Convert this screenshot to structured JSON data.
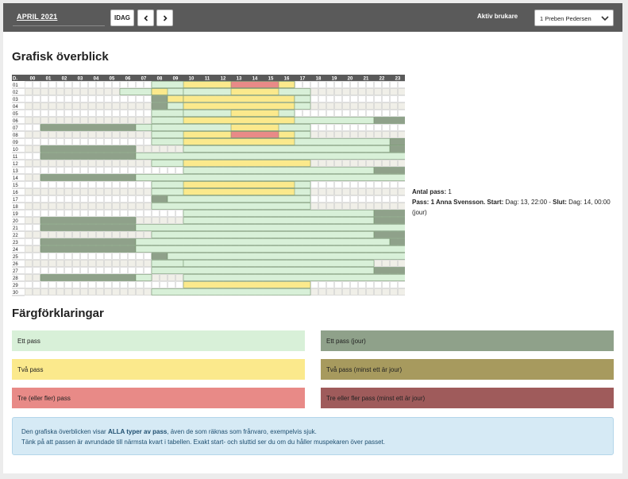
{
  "topbar": {
    "month_label": "APRIL 2021",
    "today_label": "IDAG",
    "prev_icon": "chevron-left-icon",
    "next_icon": "chevron-right-icon",
    "active_user_label": "Aktiv brukare",
    "selected_user": "1 Preben Pedersen",
    "dropdown_icon": "chevron-down-icon"
  },
  "overview": {
    "title": "Grafisk överblick",
    "corner_label": "D.",
    "hours": [
      "00",
      "01",
      "02",
      "03",
      "04",
      "05",
      "06",
      "07",
      "08",
      "09",
      "10",
      "11",
      "12",
      "13",
      "14",
      "15",
      "16",
      "17",
      "18",
      "19",
      "20",
      "21",
      "22",
      "23"
    ],
    "days": [
      "01",
      "02",
      "03",
      "04",
      "05",
      "06",
      "07",
      "08",
      "09",
      "10",
      "11",
      "12",
      "13",
      "14",
      "15",
      "16",
      "17",
      "18",
      "19",
      "20",
      "21",
      "22",
      "23",
      "24",
      "25",
      "26",
      "27",
      "28",
      "29",
      "30"
    ],
    "colors": {
      "one": "#d8f0d8",
      "two": "#fbe98c",
      "three": "#e88a87",
      "jour_one": "#8fa18a",
      "jour_two": "#a79a5e",
      "jour_three": "#9f5b5b",
      "empty": "#ffffff",
      "empty_alt": "#f0efe8",
      "border": "#cfcfcf",
      "header_bg": "#5a5a5a"
    },
    "rows": [
      [
        {
          "s": 8,
          "e": 17,
          "c": "one"
        },
        {
          "s": 10,
          "e": 17,
          "c": "two"
        },
        {
          "s": 13,
          "e": 16,
          "c": "three"
        }
      ],
      [
        {
          "s": 6,
          "e": 8,
          "c": "one"
        },
        {
          "s": 8,
          "e": 10,
          "c": "one"
        },
        {
          "s": 10,
          "e": 18,
          "c": "one"
        },
        {
          "s": 8,
          "e": 9,
          "c": "two"
        },
        {
          "s": 13,
          "e": 16,
          "c": "two"
        }
      ],
      [
        {
          "s": 8,
          "e": 9,
          "c": "jour_one"
        },
        {
          "s": 9,
          "e": 10,
          "c": "two"
        },
        {
          "s": 10,
          "e": 17,
          "c": "two"
        },
        {
          "s": 17,
          "e": 18,
          "c": "one"
        }
      ],
      [
        {
          "s": 8,
          "e": 9,
          "c": "jour_one"
        },
        {
          "s": 9,
          "e": 10,
          "c": "one"
        },
        {
          "s": 10,
          "e": 17,
          "c": "two"
        },
        {
          "s": 17,
          "e": 18,
          "c": "one"
        }
      ],
      [
        {
          "s": 8,
          "e": 10,
          "c": "one"
        },
        {
          "s": 10,
          "e": 17,
          "c": "one"
        },
        {
          "s": 13,
          "e": 16,
          "c": "two"
        }
      ],
      [
        {
          "s": 8,
          "e": 22,
          "c": "one"
        },
        {
          "s": 10,
          "e": 17,
          "c": "two"
        },
        {
          "s": 22,
          "e": 24,
          "c": "jour_one"
        }
      ],
      [
        {
          "s": 1,
          "e": 7,
          "c": "jour_one"
        },
        {
          "s": 7,
          "e": 8,
          "c": "one"
        },
        {
          "s": 8,
          "e": 18,
          "c": "one"
        },
        {
          "s": 13,
          "e": 16,
          "c": "two"
        }
      ],
      [
        {
          "s": 8,
          "e": 18,
          "c": "one"
        },
        {
          "s": 10,
          "e": 17,
          "c": "two"
        },
        {
          "s": 13,
          "e": 16,
          "c": "three"
        }
      ],
      [
        {
          "s": 8,
          "e": 24,
          "c": "one"
        },
        {
          "s": 10,
          "e": 17,
          "c": "two"
        },
        {
          "s": 23,
          "e": 24,
          "c": "jour_one"
        }
      ],
      [
        {
          "s": 1,
          "e": 7,
          "c": "jour_one"
        },
        {
          "s": 10,
          "e": 23,
          "c": "one"
        },
        {
          "s": 23,
          "e": 24,
          "c": "jour_one"
        }
      ],
      [
        {
          "s": 1,
          "e": 7,
          "c": "jour_one"
        },
        {
          "s": 7,
          "e": 24,
          "c": "one"
        }
      ],
      [
        {
          "s": 8,
          "e": 10,
          "c": "one"
        },
        {
          "s": 10,
          "e": 18,
          "c": "two"
        }
      ],
      [
        {
          "s": 10,
          "e": 22,
          "c": "one"
        },
        {
          "s": 22,
          "e": 24,
          "c": "jour_one"
        }
      ],
      [
        {
          "s": 1,
          "e": 7,
          "c": "jour_one"
        },
        {
          "s": 7,
          "e": 24,
          "c": "one"
        }
      ],
      [
        {
          "s": 8,
          "e": 18,
          "c": "one"
        },
        {
          "s": 10,
          "e": 17,
          "c": "two"
        }
      ],
      [
        {
          "s": 8,
          "e": 18,
          "c": "one"
        },
        {
          "s": 10,
          "e": 17,
          "c": "two"
        }
      ],
      [
        {
          "s": 8,
          "e": 9,
          "c": "jour_one"
        },
        {
          "s": 9,
          "e": 18,
          "c": "one"
        }
      ],
      [
        {
          "s": 8,
          "e": 18,
          "c": "one"
        }
      ],
      [
        {
          "s": 10,
          "e": 22,
          "c": "one"
        },
        {
          "s": 22,
          "e": 24,
          "c": "jour_one"
        }
      ],
      [
        {
          "s": 1,
          "e": 7,
          "c": "jour_one"
        },
        {
          "s": 10,
          "e": 22,
          "c": "one"
        },
        {
          "s": 22,
          "e": 24,
          "c": "jour_one"
        }
      ],
      [
        {
          "s": 1,
          "e": 7,
          "c": "jour_one"
        },
        {
          "s": 7,
          "e": 24,
          "c": "one"
        }
      ],
      [
        {
          "s": 8,
          "e": 22,
          "c": "one"
        },
        {
          "s": 22,
          "e": 24,
          "c": "jour_one"
        }
      ],
      [
        {
          "s": 1,
          "e": 7,
          "c": "jour_one"
        },
        {
          "s": 7,
          "e": 23,
          "c": "one"
        },
        {
          "s": 23,
          "e": 24,
          "c": "jour_one"
        }
      ],
      [
        {
          "s": 1,
          "e": 7,
          "c": "jour_one"
        },
        {
          "s": 7,
          "e": 24,
          "c": "one"
        }
      ],
      [
        {
          "s": 8,
          "e": 9,
          "c": "jour_one"
        },
        {
          "s": 9,
          "e": 24,
          "c": "one"
        }
      ],
      [
        {
          "s": 8,
          "e": 10,
          "c": "one"
        },
        {
          "s": 10,
          "e": 22,
          "c": "one"
        }
      ],
      [
        {
          "s": 8,
          "e": 22,
          "c": "one"
        },
        {
          "s": 22,
          "e": 24,
          "c": "jour_one"
        }
      ],
      [
        {
          "s": 1,
          "e": 7,
          "c": "jour_one"
        },
        {
          "s": 7,
          "e": 8,
          "c": "one"
        },
        {
          "s": 10,
          "e": 24,
          "c": "one"
        }
      ],
      [
        {
          "s": 10,
          "e": 18,
          "c": "two"
        }
      ],
      [
        {
          "s": 8,
          "e": 18,
          "c": "one"
        }
      ]
    ]
  },
  "info": {
    "count_label": "Antal pass:",
    "count_value": "1",
    "pass_label": "Pass: 1 Anna Svensson.",
    "start_label": "Start:",
    "start_value": "Dag: 13, 22:00 -",
    "end_label": "Slut:",
    "end_value": "Dag: 14, 00:00 (jour)"
  },
  "legend": {
    "title": "Färgförklaringar",
    "items": [
      {
        "label": "Ett pass",
        "bg": "#d8f0d8",
        "fg": "#222222"
      },
      {
        "label": "Ett pass (jour)",
        "bg": "#8fa18a",
        "fg": "#222222"
      },
      {
        "label": "Två pass",
        "bg": "#fbe98c",
        "fg": "#222222"
      },
      {
        "label": "Två pass (minst ett är jour)",
        "bg": "#a79a5e",
        "fg": "#222222"
      },
      {
        "label": "Tre (eller fler) pass",
        "bg": "#e88a87",
        "fg": "#222222"
      },
      {
        "label": "Tre eller fler pass (minst ett är jour)",
        "bg": "#9f5b5b",
        "fg": "#222222"
      }
    ]
  },
  "note": {
    "line1_pre": "Den grafiska överblicken visar",
    "line1_bold": "ALLA typer av pass",
    "line1_post": ", även de som räknas som frånvaro, exempelvis sjuk.",
    "line2": "Tänk på att passen är avrundade till närmsta kvart i tabellen. Exakt start- och sluttid ser du om du håller muspekaren över passet."
  }
}
